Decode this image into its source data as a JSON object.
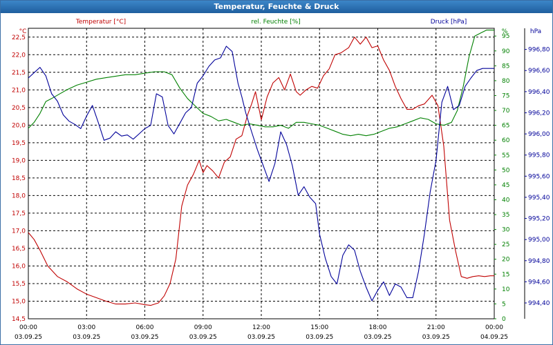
{
  "window": {
    "title": "Temperatur, Feuchte & Druck"
  },
  "colors": {
    "temperature": "#c00000",
    "humidity": "#008000",
    "pressure": "#000099",
    "grid": "#000000",
    "axis_text": "#000000"
  },
  "chart_data": {
    "type": "line",
    "title": "Temperatur, Feuchte & Druck",
    "x_labels": [
      {
        "time": "00:00",
        "date": "03.09.25"
      },
      {
        "time": "03:00",
        "date": "03.09.25"
      },
      {
        "time": "06:00",
        "date": "03.09.25"
      },
      {
        "time": "09:00",
        "date": "03.09.25"
      },
      {
        "time": "12:00",
        "date": "03.09.25"
      },
      {
        "time": "15:00",
        "date": "03.09.25"
      },
      {
        "time": "18:00",
        "date": "03.09.25"
      },
      {
        "time": "21:00",
        "date": "03.09.25"
      },
      {
        "time": "00:00",
        "date": "04.09.25"
      }
    ],
    "x_range_hours": [
      0,
      24
    ],
    "axes": {
      "temperature": {
        "label": "Temperatur [°C]",
        "unit": "°C",
        "range": [
          14.5,
          22.75
        ],
        "ticks": [
          "22,5",
          "22,0",
          "21,5",
          "21,0",
          "20,5",
          "20,0",
          "19,5",
          "19,0",
          "18,5",
          "18,0",
          "17,5",
          "17,0",
          "16,5",
          "16,0",
          "15,5",
          "15,0",
          "14,5"
        ],
        "tick_values": [
          22.5,
          22.0,
          21.5,
          21.0,
          20.5,
          20.0,
          19.5,
          19.0,
          18.5,
          18.0,
          17.5,
          17.0,
          16.5,
          16.0,
          15.5,
          15.0,
          14.5
        ]
      },
      "humidity": {
        "label": "rel. Feuchte [%]",
        "unit": "%",
        "range": [
          0,
          97.6
        ],
        "ticks": [
          "95",
          "90",
          "85",
          "80",
          "75",
          "70",
          "65",
          "60",
          "55",
          "50",
          "45",
          "40",
          "35",
          "30",
          "25",
          "20",
          "15",
          "10",
          "5",
          "0"
        ],
        "tick_values": [
          95,
          90,
          85,
          80,
          75,
          70,
          65,
          60,
          55,
          50,
          45,
          40,
          35,
          30,
          25,
          20,
          15,
          10,
          5,
          0
        ]
      },
      "pressure": {
        "label": "Druck [hPa]",
        "unit": "hPa",
        "range": [
          994.25,
          997.0
        ],
        "ticks": [
          "996,80",
          "996,60",
          "996,40",
          "996,20",
          "996,00",
          "995,80",
          "995,60",
          "995,40",
          "995,20",
          "995,00",
          "994,80",
          "994,60",
          "994,40"
        ],
        "tick_values": [
          996.8,
          996.6,
          996.4,
          996.2,
          996.0,
          995.8,
          995.6,
          995.4,
          995.2,
          995.0,
          994.8,
          994.6,
          994.4
        ]
      }
    },
    "series": [
      {
        "name": "Temperatur",
        "axis": "temperature",
        "color": "#c00000",
        "x": [
          0,
          0.3,
          0.6,
          1.0,
          1.5,
          2.0,
          2.5,
          3.0,
          3.5,
          4.0,
          4.5,
          5.0,
          5.5,
          6.0,
          6.3,
          6.7,
          7.0,
          7.3,
          7.6,
          7.9,
          8.2,
          8.5,
          8.8,
          9.0,
          9.2,
          9.5,
          9.8,
          10.1,
          10.4,
          10.7,
          11.0,
          11.3,
          11.5,
          11.7,
          12.0,
          12.3,
          12.6,
          12.9,
          13.2,
          13.5,
          13.8,
          14.0,
          14.3,
          14.6,
          14.9,
          15.2,
          15.5,
          15.8,
          16.1,
          16.5,
          16.8,
          17.1,
          17.4,
          17.7,
          18.0,
          18.3,
          18.6,
          18.9,
          19.2,
          19.5,
          19.8,
          20.1,
          20.4,
          20.8,
          21.1,
          21.4,
          21.7,
          22.0,
          22.3,
          22.6,
          22.9,
          23.2,
          23.5,
          23.8,
          24
        ],
        "values": [
          16.95,
          16.75,
          16.45,
          16.0,
          15.7,
          15.55,
          15.35,
          15.2,
          15.1,
          15.0,
          14.92,
          14.92,
          14.95,
          14.9,
          14.88,
          14.95,
          15.15,
          15.5,
          16.2,
          17.7,
          18.3,
          18.6,
          19.0,
          18.65,
          18.85,
          18.7,
          18.5,
          18.95,
          19.1,
          19.6,
          19.7,
          20.3,
          20.6,
          20.95,
          20.15,
          20.8,
          21.2,
          21.35,
          21.0,
          21.45,
          20.95,
          20.85,
          21.0,
          21.1,
          21.05,
          21.4,
          21.6,
          22.0,
          22.05,
          22.2,
          22.5,
          22.3,
          22.5,
          22.2,
          22.25,
          21.85,
          21.55,
          21.1,
          20.75,
          20.45,
          20.45,
          20.55,
          20.6,
          20.85,
          20.55,
          19.4,
          17.3,
          16.45,
          15.7,
          15.65,
          15.7,
          15.72,
          15.7,
          15.72,
          15.72
        ]
      },
      {
        "name": "rel. Feuchte",
        "axis": "humidity",
        "color": "#008000",
        "x": [
          0,
          0.3,
          0.6,
          0.9,
          1.2,
          1.6,
          2.0,
          2.5,
          3.0,
          3.5,
          4.0,
          4.5,
          5.0,
          5.5,
          6.0,
          6.5,
          7.0,
          7.4,
          7.8,
          8.2,
          8.6,
          9.0,
          9.4,
          9.8,
          10.2,
          10.6,
          11.0,
          11.4,
          11.8,
          12.2,
          12.6,
          13.0,
          13.4,
          13.8,
          14.2,
          14.6,
          15.0,
          15.4,
          15.8,
          16.2,
          16.6,
          17.0,
          17.4,
          17.8,
          18.2,
          18.6,
          19.0,
          19.4,
          19.8,
          20.2,
          20.6,
          21.0,
          21.4,
          21.8,
          22.1,
          22.4,
          22.7,
          23.0,
          23.3,
          23.6,
          23.8,
          24
        ],
        "values": [
          64,
          66,
          69,
          73,
          74,
          75.5,
          77,
          78.5,
          79.5,
          80.5,
          81,
          81.5,
          82,
          82,
          82.5,
          83,
          83,
          82,
          77.5,
          74,
          71.5,
          69,
          68,
          66.5,
          67,
          66,
          65,
          65.5,
          65,
          64.5,
          64.5,
          65,
          64,
          66,
          66,
          65.5,
          65,
          64,
          63,
          62,
          61.5,
          62,
          61.5,
          62,
          63,
          64,
          64.5,
          65.5,
          66.5,
          67.5,
          67,
          65.5,
          65,
          66,
          70,
          78,
          88,
          95,
          96,
          97,
          97,
          97
        ]
      },
      {
        "name": "Druck",
        "axis": "pressure",
        "color": "#000099",
        "x": [
          0,
          0.3,
          0.6,
          0.9,
          1.2,
          1.5,
          1.8,
          2.1,
          2.4,
          2.7,
          3.0,
          3.3,
          3.6,
          3.9,
          4.2,
          4.5,
          4.8,
          5.1,
          5.4,
          5.7,
          6.0,
          6.3,
          6.6,
          6.9,
          7.2,
          7.5,
          7.8,
          8.1,
          8.4,
          8.7,
          9.0,
          9.3,
          9.6,
          9.9,
          10.2,
          10.5,
          10.8,
          11.0,
          11.2,
          11.5,
          11.8,
          12.1,
          12.4,
          12.7,
          13.0,
          13.3,
          13.6,
          13.9,
          14.2,
          14.5,
          14.8,
          15.0,
          15.3,
          15.6,
          15.9,
          16.2,
          16.5,
          16.8,
          17.1,
          17.4,
          17.7,
          18.0,
          18.3,
          18.6,
          18.9,
          19.2,
          19.5,
          19.8,
          20.1,
          20.4,
          20.7,
          21.0,
          21.3,
          21.6,
          21.9,
          22.2,
          22.5,
          22.8,
          23.1,
          23.4,
          23.7,
          24
        ],
        "values": [
          996.53,
          996.58,
          996.63,
          996.55,
          996.38,
          996.31,
          996.18,
          996.12,
          996.09,
          996.05,
          996.17,
          996.27,
          996.11,
          995.94,
          995.96,
          996.02,
          995.98,
          995.99,
          995.95,
          996.0,
          996.05,
          996.08,
          996.38,
          996.35,
          996.08,
          996.0,
          996.1,
          996.2,
          996.25,
          996.48,
          996.55,
          996.64,
          996.7,
          996.72,
          996.83,
          996.78,
          996.48,
          996.35,
          996.2,
          996.02,
          995.85,
          995.7,
          995.55,
          995.72,
          996.02,
          995.9,
          995.7,
          995.42,
          995.5,
          995.4,
          995.34,
          995.05,
          994.82,
          994.65,
          994.58,
          994.85,
          994.95,
          994.9,
          994.7,
          994.55,
          994.42,
          994.52,
          994.6,
          994.47,
          994.58,
          994.55,
          994.45,
          994.45,
          994.7,
          995.05,
          995.45,
          995.75,
          996.3,
          996.45,
          996.23,
          996.27,
          996.45,
          996.53,
          996.6,
          996.62,
          996.62,
          996.62
        ]
      }
    ]
  }
}
